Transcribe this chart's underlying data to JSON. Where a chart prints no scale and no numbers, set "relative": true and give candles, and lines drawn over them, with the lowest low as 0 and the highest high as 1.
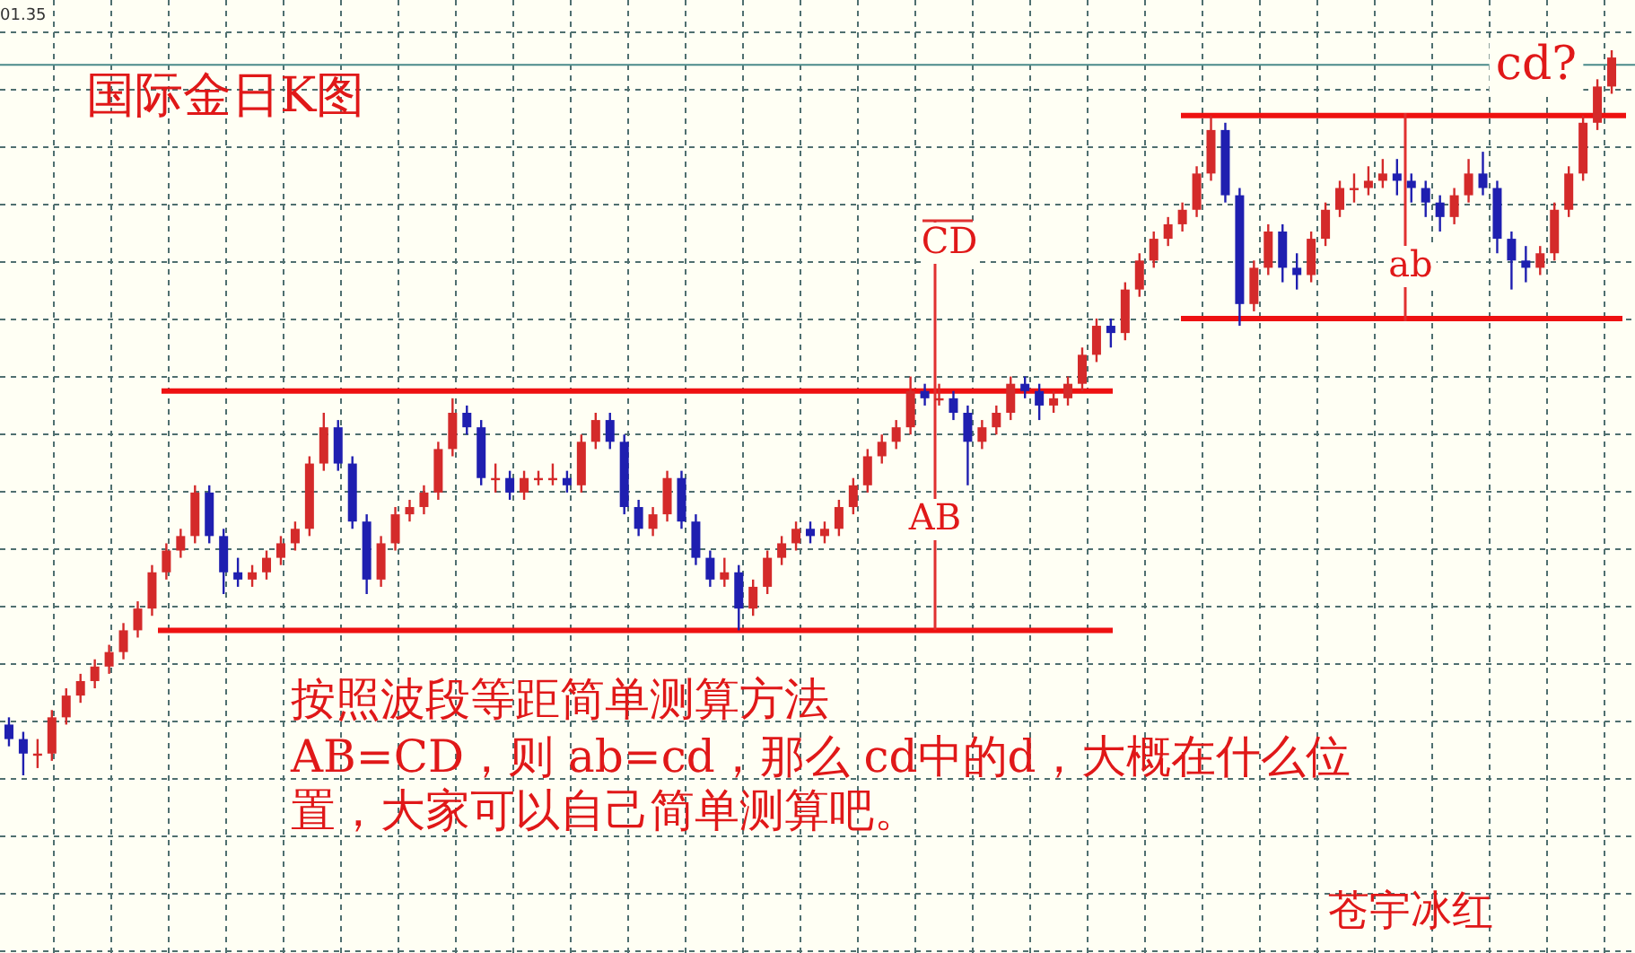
{
  "chart_data": {
    "type": "candlestick",
    "title": "国际金日K图",
    "relative": true,
    "grid": true,
    "colors": [
      "#1f1fb0",
      "#1f1fb0",
      "#d42a2a",
      "#d42a2a",
      "#d42a2a",
      "#d42a2a",
      "#d42a2a",
      "#d42a2a",
      "#d42a2a",
      "#d42a2a",
      "#d42a2a",
      "#d42a2a",
      "#d42a2a",
      "#d42a2a",
      "#1f1fb0",
      "#1f1fb0",
      "#1f1fb0",
      "#d42a2a",
      "#d42a2a",
      "#d42a2a",
      "#d42a2a",
      "#d42a2a",
      "#d42a2a",
      "#1f1fb0",
      "#1f1fb0",
      "#1f1fb0",
      "#d42a2a",
      "#d42a2a",
      "#d42a2a",
      "#d42a2a",
      "#d42a2a",
      "#d42a2a",
      "#1f1fb0",
      "#1f1fb0",
      "#d42a2a",
      "#1f1fb0",
      "#d42a2a",
      "#d42a2a",
      "#d42a2a",
      "#1f1fb0",
      "#d42a2a",
      "#d42a2a",
      "#1f1fb0",
      "#1f1fb0",
      "#1f1fb0",
      "#d42a2a",
      "#d42a2a",
      "#1f1fb0",
      "#1f1fb0",
      "#1f1fb0",
      "#d42a2a",
      "#1f1fb0",
      "#d42a2a",
      "#d42a2a",
      "#d42a2a",
      "#d42a2a",
      "#1f1fb0",
      "#d42a2a",
      "#d42a2a",
      "#d42a2a",
      "#d42a2a",
      "#d42a2a",
      "#d42a2a",
      "#d42a2a",
      "#1f1fb0",
      "#d42a2a",
      "#1f1fb0",
      "#1f1fb0",
      "#d42a2a",
      "#d42a2a",
      "#d42a2a",
      "#1f1fb0",
      "#1f1fb0",
      "#d42a2a",
      "#d42a2a",
      "#d42a2a",
      "#d42a2a",
      "#1f1fb0",
      "#d42a2a",
      "#d42a2a",
      "#d42a2a",
      "#d42a2a",
      "#d42a2a",
      "#d42a2a",
      "#d42a2a",
      "#1f1fb0",
      "#1f1fb0",
      "#d42a2a",
      "#d42a2a",
      "#1f1fb0",
      "#1f1fb0",
      "#d42a2a",
      "#d42a2a",
      "#d42a2a",
      "#d42a2a",
      "#d42a2a",
      "#d42a2a",
      "#1f1fb0",
      "#1f1fb0",
      "#1f1fb0",
      "#1f1fb0",
      "#d42a2a",
      "#d42a2a",
      "#1f1fb0",
      "#1f1fb0",
      "#1f1fb0",
      "#1f1fb0",
      "#d42a2a",
      "#d42a2a",
      "#d42a2a",
      "#d42a2a",
      "#d42a2a",
      "#d42a2a"
    ],
    "categories": [
      null,
      null,
      null,
      null,
      null,
      null,
      null,
      null,
      null,
      null,
      null,
      null,
      null,
      null,
      null,
      null,
      null,
      null,
      null,
      null,
      null,
      null,
      null,
      null,
      null,
      null,
      null,
      null,
      null,
      null,
      null,
      null,
      null,
      null,
      null,
      null,
      null,
      null,
      null,
      null,
      null,
      null,
      null,
      null,
      null,
      null,
      null,
      null,
      null,
      null,
      null,
      null,
      null,
      null,
      null,
      null,
      null,
      null,
      null,
      null,
      null,
      null,
      null,
      null,
      null,
      null,
      null,
      null,
      null,
      null,
      null,
      null,
      null,
      null,
      null,
      null,
      null,
      null,
      null,
      null,
      null,
      null,
      null,
      null,
      null,
      null,
      null,
      null,
      null,
      null,
      null,
      null,
      null,
      null,
      null,
      null,
      null,
      null,
      null,
      null,
      null,
      null,
      null,
      null,
      null,
      null,
      null,
      null,
      null,
      null,
      null,
      null,
      null
    ],
    "ohlc": [
      [
        0.07,
        0.08,
        0.04,
        0.05
      ],
      [
        0.05,
        0.06,
        0,
        0.03
      ],
      [
        0.03,
        0.05,
        0.01,
        0.03
      ],
      [
        0.03,
        0.09,
        0.02,
        0.08
      ],
      [
        0.08,
        0.12,
        0.07,
        0.11
      ],
      [
        0.11,
        0.14,
        0.1,
        0.13
      ],
      [
        0.13,
        0.16,
        0.12,
        0.15
      ],
      [
        0.15,
        0.18,
        0.14,
        0.17
      ],
      [
        0.17,
        0.21,
        0.16,
        0.2
      ],
      [
        0.2,
        0.24,
        0.19,
        0.23
      ],
      [
        0.23,
        0.29,
        0.22,
        0.28
      ],
      [
        0.28,
        0.32,
        0.27,
        0.31
      ],
      [
        0.31,
        0.34,
        0.3,
        0.33
      ],
      [
        0.33,
        0.4,
        0.32,
        0.39
      ],
      [
        0.39,
        0.4,
        0.32,
        0.33
      ],
      [
        0.33,
        0.34,
        0.25,
        0.28
      ],
      [
        0.28,
        0.3,
        0.26,
        0.27
      ],
      [
        0.27,
        0.29,
        0.26,
        0.28
      ],
      [
        0.28,
        0.31,
        0.27,
        0.3
      ],
      [
        0.3,
        0.33,
        0.29,
        0.32
      ],
      [
        0.32,
        0.35,
        0.31,
        0.34
      ],
      [
        0.34,
        0.44,
        0.33,
        0.43
      ],
      [
        0.43,
        0.5,
        0.42,
        0.48
      ],
      [
        0.48,
        0.49,
        0.42,
        0.43
      ],
      [
        0.43,
        0.44,
        0.34,
        0.35
      ],
      [
        0.35,
        0.36,
        0.25,
        0.27
      ],
      [
        0.27,
        0.33,
        0.26,
        0.32
      ],
      [
        0.32,
        0.37,
        0.31,
        0.36
      ],
      [
        0.36,
        0.38,
        0.35,
        0.37
      ],
      [
        0.37,
        0.4,
        0.36,
        0.39
      ],
      [
        0.39,
        0.46,
        0.38,
        0.45
      ],
      [
        0.45,
        0.52,
        0.44,
        0.5
      ],
      [
        0.5,
        0.51,
        0.47,
        0.48
      ],
      [
        0.48,
        0.49,
        0.4,
        0.41
      ],
      [
        0.41,
        0.43,
        0.39,
        0.41
      ],
      [
        0.41,
        0.42,
        0.38,
        0.39
      ],
      [
        0.39,
        0.42,
        0.38,
        0.41
      ],
      [
        0.41,
        0.42,
        0.4,
        0.41
      ],
      [
        0.41,
        0.43,
        0.4,
        0.41
      ],
      [
        0.41,
        0.42,
        0.39,
        0.4
      ],
      [
        0.4,
        0.47,
        0.39,
        0.46
      ],
      [
        0.46,
        0.5,
        0.45,
        0.49
      ],
      [
        0.49,
        0.5,
        0.45,
        0.46
      ],
      [
        0.46,
        0.47,
        0.36,
        0.37
      ],
      [
        0.37,
        0.38,
        0.33,
        0.34
      ],
      [
        0.34,
        0.37,
        0.33,
        0.36
      ],
      [
        0.36,
        0.42,
        0.35,
        0.41
      ],
      [
        0.41,
        0.42,
        0.34,
        0.35
      ],
      [
        0.35,
        0.36,
        0.29,
        0.3
      ],
      [
        0.3,
        0.31,
        0.26,
        0.27
      ],
      [
        0.27,
        0.3,
        0.26,
        0.28
      ],
      [
        0.28,
        0.29,
        0.2,
        0.23
      ],
      [
        0.23,
        0.27,
        0.22,
        0.26
      ],
      [
        0.26,
        0.31,
        0.25,
        0.3
      ],
      [
        0.3,
        0.33,
        0.29,
        0.32
      ],
      [
        0.32,
        0.35,
        0.31,
        0.34
      ],
      [
        0.34,
        0.35,
        0.32,
        0.33
      ],
      [
        0.33,
        0.35,
        0.32,
        0.34
      ],
      [
        0.34,
        0.38,
        0.33,
        0.37
      ],
      [
        0.37,
        0.41,
        0.36,
        0.4
      ],
      [
        0.4,
        0.45,
        0.39,
        0.44
      ],
      [
        0.44,
        0.47,
        0.43,
        0.46
      ],
      [
        0.46,
        0.49,
        0.45,
        0.48
      ],
      [
        0.48,
        0.55,
        0.47,
        0.53
      ],
      [
        0.53,
        0.54,
        0.51,
        0.52
      ],
      [
        0.52,
        0.54,
        0.51,
        0.52
      ],
      [
        0.52,
        0.53,
        0.49,
        0.5
      ],
      [
        0.5,
        0.51,
        0.4,
        0.46
      ],
      [
        0.46,
        0.49,
        0.45,
        0.48
      ],
      [
        0.48,
        0.51,
        0.47,
        0.5
      ],
      [
        0.5,
        0.55,
        0.49,
        0.54
      ],
      [
        0.54,
        0.55,
        0.52,
        0.53
      ],
      [
        0.53,
        0.54,
        0.49,
        0.51
      ],
      [
        0.51,
        0.53,
        0.5,
        0.52
      ],
      [
        0.52,
        0.55,
        0.51,
        0.54
      ],
      [
        0.54,
        0.59,
        0.53,
        0.58
      ],
      [
        0.58,
        0.63,
        0.57,
        0.62
      ],
      [
        0.62,
        0.63,
        0.59,
        0.61
      ],
      [
        0.61,
        0.68,
        0.6,
        0.67
      ],
      [
        0.67,
        0.72,
        0.66,
        0.71
      ],
      [
        0.71,
        0.75,
        0.7,
        0.74
      ],
      [
        0.74,
        0.77,
        0.73,
        0.76
      ],
      [
        0.76,
        0.79,
        0.75,
        0.78
      ],
      [
        0.78,
        0.84,
        0.77,
        0.83
      ],
      [
        0.83,
        0.91,
        0.82,
        0.89
      ],
      [
        0.89,
        0.9,
        0.79,
        0.8
      ],
      [
        0.8,
        0.81,
        0.62,
        0.65
      ],
      [
        0.65,
        0.71,
        0.64,
        0.7
      ],
      [
        0.7,
        0.76,
        0.69,
        0.75
      ],
      [
        0.75,
        0.76,
        0.68,
        0.7
      ],
      [
        0.7,
        0.72,
        0.67,
        0.69
      ],
      [
        0.69,
        0.75,
        0.68,
        0.74
      ],
      [
        0.74,
        0.79,
        0.73,
        0.78
      ],
      [
        0.78,
        0.82,
        0.77,
        0.81
      ],
      [
        0.81,
        0.83,
        0.79,
        0.81
      ],
      [
        0.81,
        0.84,
        0.8,
        0.82
      ],
      [
        0.82,
        0.85,
        0.81,
        0.83
      ],
      [
        0.83,
        0.85,
        0.8,
        0.82
      ],
      [
        0.82,
        0.83,
        0.79,
        0.81
      ],
      [
        0.81,
        0.82,
        0.77,
        0.79
      ],
      [
        0.79,
        0.8,
        0.75,
        0.77
      ],
      [
        0.77,
        0.81,
        0.76,
        0.8
      ],
      [
        0.8,
        0.85,
        0.79,
        0.83
      ],
      [
        0.83,
        0.86,
        0.8,
        0.81
      ],
      [
        0.81,
        0.82,
        0.72,
        0.74
      ],
      [
        0.74,
        0.75,
        0.67,
        0.71
      ],
      [
        0.71,
        0.73,
        0.68,
        0.7
      ],
      [
        0.7,
        0.73,
        0.69,
        0.72
      ],
      [
        0.72,
        0.79,
        0.71,
        0.78
      ],
      [
        0.78,
        0.84,
        0.77,
        0.83
      ],
      [
        0.83,
        0.91,
        0.82,
        0.9
      ],
      [
        0.9,
        0.96,
        0.89,
        0.95
      ],
      [
        0.95,
        1,
        0.94,
        0.99
      ]
    ],
    "ref_lines": [
      {
        "axis": "y",
        "value": 0.98,
        "color": "#4a8a8a"
      },
      {
        "axis": "y",
        "value": 0.53,
        "color": "#ee1111"
      },
      {
        "axis": "y",
        "value": 0.2,
        "color": "#ee1111"
      },
      {
        "axis": "y",
        "value": 0.91,
        "color": "#ee1111"
      },
      {
        "axis": "y",
        "value": 0.63,
        "color": "#ee1111"
      }
    ],
    "annotations": [
      "CD",
      "AB",
      "ab",
      "cd?",
      "01.35",
      "按照波段等距简单测算方法",
      "AB=CD，则 ab=cd，那么 cd中的d，大概在什么位",
      "置，大家可以自己简单测算吧。",
      "苍宇冰红"
    ]
  }
}
